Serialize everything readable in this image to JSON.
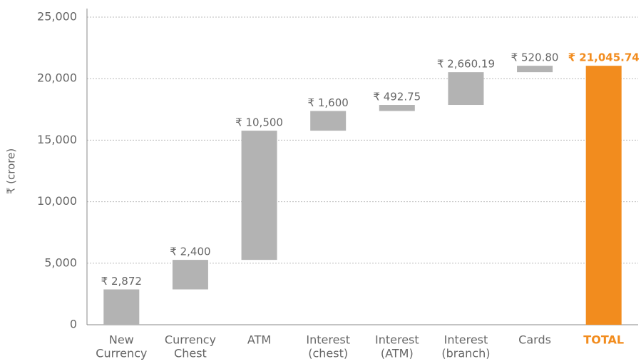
{
  "chart_data": {
    "type": "waterfall",
    "ylabel": "₹ (crore)",
    "categories": [
      [
        "New",
        "Currency"
      ],
      [
        "Currency",
        "Chest"
      ],
      [
        "ATM"
      ],
      [
        "Interest",
        "(chest)"
      ],
      [
        "Interest",
        "(ATM)"
      ],
      [
        "Interest",
        "(branch)"
      ],
      [
        "Cards"
      ],
      [
        "TOTAL"
      ]
    ],
    "values": [
      2872,
      2400,
      10500,
      1600,
      492.75,
      2660.19,
      520.8,
      21045.74
    ],
    "value_labels": [
      "₹ 2,872",
      "₹ 2,400",
      "₹ 10,500",
      "₹ 1,600",
      "₹ 492.75",
      "₹ 2,660.19",
      "₹ 520.80",
      "₹ 21,045.74"
    ],
    "measures": [
      "relative",
      "relative",
      "relative",
      "relative",
      "relative",
      "relative",
      "relative",
      "total"
    ],
    "colors": {
      "relative": "#b3b3b3",
      "total": "#f28c1e"
    },
    "ylim": [
      0,
      25000
    ],
    "yticks": [
      0,
      {
        "value": 5000,
        "label": "5,000"
      },
      {
        "value": 10000,
        "label": "10,000"
      },
      {
        "value": 15000,
        "label": "15,000"
      },
      {
        "value": 20000,
        "label": "20,000"
      },
      {
        "value": 25000,
        "label": "25,000"
      }
    ],
    "grid": true
  }
}
